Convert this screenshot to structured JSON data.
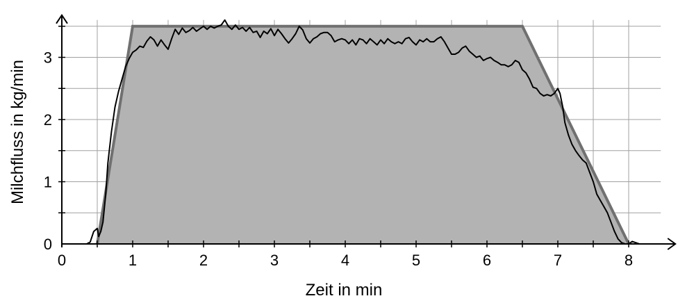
{
  "chart_data": {
    "type": "line",
    "xlabel": "Zeit in min",
    "ylabel": "Milchfluss in kg/min",
    "xlim": [
      0,
      8.6
    ],
    "ylim": [
      0,
      3.6
    ],
    "grid": true,
    "x_ticks": [
      0,
      1,
      2,
      3,
      4,
      5,
      6,
      7,
      8
    ],
    "y_ticks": [
      0,
      1,
      2,
      3
    ],
    "minor_step": 0.5,
    "colors": {
      "trapezoid_fill": "#b3b3b3",
      "trapezoid_line": "#707070",
      "measured_line": "#000000",
      "grid": "#a0a0a0"
    },
    "series": [
      {
        "kind": "trapezoid",
        "points": [
          [
            0.5,
            0
          ],
          [
            1,
            3.5
          ],
          [
            6.5,
            3.5
          ],
          [
            8,
            0
          ]
        ]
      },
      {
        "kind": "measured",
        "points": [
          [
            0.35,
            0
          ],
          [
            0.4,
            0.03
          ],
          [
            0.45,
            0.2
          ],
          [
            0.5,
            0.25
          ],
          [
            0.52,
            0.12
          ],
          [
            0.55,
            0.2
          ],
          [
            0.58,
            0.35
          ],
          [
            0.62,
            0.8
          ],
          [
            0.65,
            1.3
          ],
          [
            0.7,
            1.8
          ],
          [
            0.75,
            2.2
          ],
          [
            0.8,
            2.45
          ],
          [
            0.85,
            2.65
          ],
          [
            0.9,
            2.85
          ],
          [
            0.95,
            2.98
          ],
          [
            1.0,
            3.08
          ],
          [
            1.05,
            3.12
          ],
          [
            1.1,
            3.18
          ],
          [
            1.15,
            3.16
          ],
          [
            1.2,
            3.26
          ],
          [
            1.25,
            3.33
          ],
          [
            1.3,
            3.28
          ],
          [
            1.35,
            3.18
          ],
          [
            1.4,
            3.28
          ],
          [
            1.45,
            3.2
          ],
          [
            1.5,
            3.13
          ],
          [
            1.55,
            3.3
          ],
          [
            1.6,
            3.45
          ],
          [
            1.65,
            3.37
          ],
          [
            1.7,
            3.47
          ],
          [
            1.75,
            3.4
          ],
          [
            1.8,
            3.43
          ],
          [
            1.85,
            3.48
          ],
          [
            1.9,
            3.42
          ],
          [
            1.95,
            3.46
          ],
          [
            2.0,
            3.5
          ],
          [
            2.05,
            3.45
          ],
          [
            2.1,
            3.5
          ],
          [
            2.15,
            3.47
          ],
          [
            2.2,
            3.5
          ],
          [
            2.25,
            3.52
          ],
          [
            2.3,
            3.6
          ],
          [
            2.35,
            3.5
          ],
          [
            2.4,
            3.45
          ],
          [
            2.45,
            3.52
          ],
          [
            2.5,
            3.45
          ],
          [
            2.55,
            3.48
          ],
          [
            2.6,
            3.42
          ],
          [
            2.65,
            3.48
          ],
          [
            2.7,
            3.4
          ],
          [
            2.75,
            3.42
          ],
          [
            2.8,
            3.32
          ],
          [
            2.85,
            3.42
          ],
          [
            2.9,
            3.38
          ],
          [
            2.95,
            3.46
          ],
          [
            3.0,
            3.35
          ],
          [
            3.05,
            3.45
          ],
          [
            3.1,
            3.38
          ],
          [
            3.15,
            3.3
          ],
          [
            3.2,
            3.23
          ],
          [
            3.25,
            3.3
          ],
          [
            3.3,
            3.38
          ],
          [
            3.35,
            3.5
          ],
          [
            3.4,
            3.44
          ],
          [
            3.45,
            3.3
          ],
          [
            3.5,
            3.23
          ],
          [
            3.55,
            3.3
          ],
          [
            3.6,
            3.33
          ],
          [
            3.65,
            3.38
          ],
          [
            3.7,
            3.4
          ],
          [
            3.75,
            3.4
          ],
          [
            3.8,
            3.35
          ],
          [
            3.85,
            3.25
          ],
          [
            3.9,
            3.28
          ],
          [
            3.95,
            3.3
          ],
          [
            4.0,
            3.28
          ],
          [
            4.05,
            3.22
          ],
          [
            4.1,
            3.28
          ],
          [
            4.15,
            3.2
          ],
          [
            4.2,
            3.3
          ],
          [
            4.25,
            3.28
          ],
          [
            4.3,
            3.22
          ],
          [
            4.35,
            3.3
          ],
          [
            4.4,
            3.25
          ],
          [
            4.45,
            3.2
          ],
          [
            4.5,
            3.28
          ],
          [
            4.55,
            3.22
          ],
          [
            4.6,
            3.3
          ],
          [
            4.65,
            3.25
          ],
          [
            4.7,
            3.22
          ],
          [
            4.75,
            3.25
          ],
          [
            4.8,
            3.22
          ],
          [
            4.85,
            3.3
          ],
          [
            4.9,
            3.32
          ],
          [
            4.95,
            3.25
          ],
          [
            5.0,
            3.2
          ],
          [
            5.05,
            3.28
          ],
          [
            5.1,
            3.25
          ],
          [
            5.15,
            3.3
          ],
          [
            5.2,
            3.25
          ],
          [
            5.25,
            3.25
          ],
          [
            5.3,
            3.3
          ],
          [
            5.35,
            3.33
          ],
          [
            5.4,
            3.25
          ],
          [
            5.45,
            3.15
          ],
          [
            5.5,
            3.05
          ],
          [
            5.55,
            3.05
          ],
          [
            5.6,
            3.08
          ],
          [
            5.65,
            3.15
          ],
          [
            5.7,
            3.18
          ],
          [
            5.75,
            3.1
          ],
          [
            5.8,
            3.05
          ],
          [
            5.85,
            3.0
          ],
          [
            5.9,
            3.02
          ],
          [
            5.95,
            2.95
          ],
          [
            6.0,
            2.98
          ],
          [
            6.05,
            3.0
          ],
          [
            6.1,
            2.95
          ],
          [
            6.15,
            2.92
          ],
          [
            6.2,
            2.88
          ],
          [
            6.25,
            2.88
          ],
          [
            6.3,
            2.85
          ],
          [
            6.35,
            2.88
          ],
          [
            6.4,
            2.95
          ],
          [
            6.45,
            2.92
          ],
          [
            6.5,
            2.8
          ],
          [
            6.55,
            2.75
          ],
          [
            6.6,
            2.65
          ],
          [
            6.65,
            2.52
          ],
          [
            6.7,
            2.5
          ],
          [
            6.75,
            2.42
          ],
          [
            6.8,
            2.38
          ],
          [
            6.85,
            2.4
          ],
          [
            6.9,
            2.38
          ],
          [
            6.95,
            2.42
          ],
          [
            7.0,
            2.5
          ],
          [
            7.03,
            2.42
          ],
          [
            7.07,
            2.2
          ],
          [
            7.1,
            1.95
          ],
          [
            7.15,
            1.75
          ],
          [
            7.2,
            1.6
          ],
          [
            7.25,
            1.5
          ],
          [
            7.3,
            1.42
          ],
          [
            7.35,
            1.35
          ],
          [
            7.4,
            1.3
          ],
          [
            7.45,
            1.15
          ],
          [
            7.5,
            1.0
          ],
          [
            7.55,
            0.8
          ],
          [
            7.6,
            0.7
          ],
          [
            7.65,
            0.6
          ],
          [
            7.7,
            0.5
          ],
          [
            7.75,
            0.35
          ],
          [
            7.8,
            0.2
          ],
          [
            7.85,
            0.08
          ],
          [
            7.9,
            0.02
          ],
          [
            7.95,
            0.0
          ],
          [
            8.0,
            0.0
          ],
          [
            8.05,
            0.04
          ],
          [
            8.1,
            0.02
          ],
          [
            8.15,
            0.0
          ],
          [
            8.2,
            0.0
          ]
        ]
      }
    ]
  }
}
